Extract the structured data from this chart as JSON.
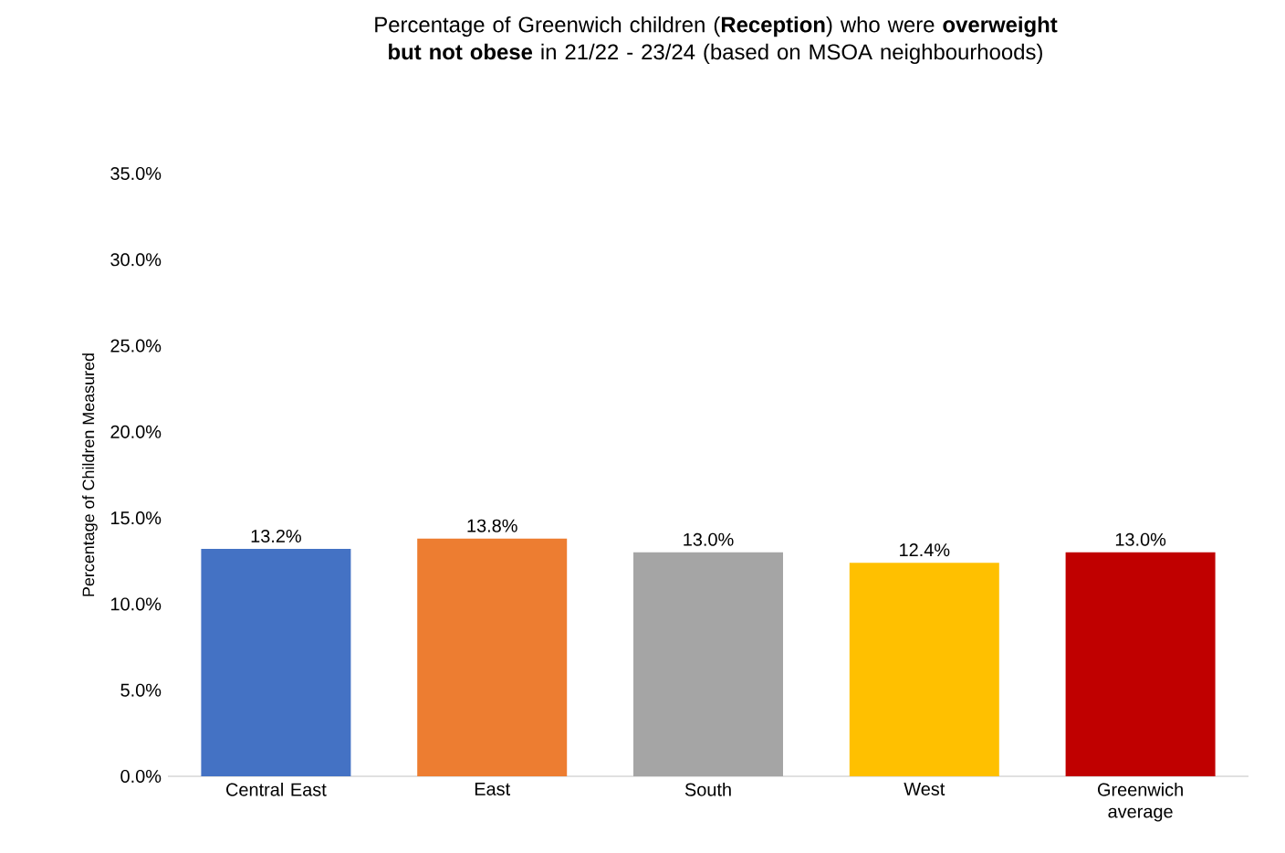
{
  "chart_data": {
    "type": "bar",
    "title": "Percentage of Greenwich children (**Reception**) who were **overweight but not obese** in 21/22 - 23/24 (based on MSOA neighbourhoods)",
    "ylabel": "Percentage of Children Measured",
    "categories": [
      "Central East",
      "East",
      "South",
      "West",
      "Greenwich average"
    ],
    "values": [
      13.2,
      13.8,
      13.0,
      12.4,
      13.0
    ],
    "colors": [
      "#4472c4",
      "#ed7d31",
      "#a5a5a5",
      "#ffc000",
      "#c00000"
    ],
    "value_labels": [
      "13.2%",
      "13.8%",
      "13.0%",
      "12.4%",
      "13.0%"
    ],
    "ylim": [
      0,
      35
    ],
    "yticks": [
      {
        "value": 0,
        "label": "0.0%"
      },
      {
        "value": 5,
        "label": "5.0%"
      },
      {
        "value": 10,
        "label": "10.0%"
      },
      {
        "value": 15,
        "label": "15.0%"
      },
      {
        "value": 20,
        "label": "20.0%"
      },
      {
        "value": 25,
        "label": "25.0%"
      },
      {
        "value": 30,
        "label": "30.0%"
      },
      {
        "value": 35,
        "label": "35.0%"
      }
    ]
  }
}
